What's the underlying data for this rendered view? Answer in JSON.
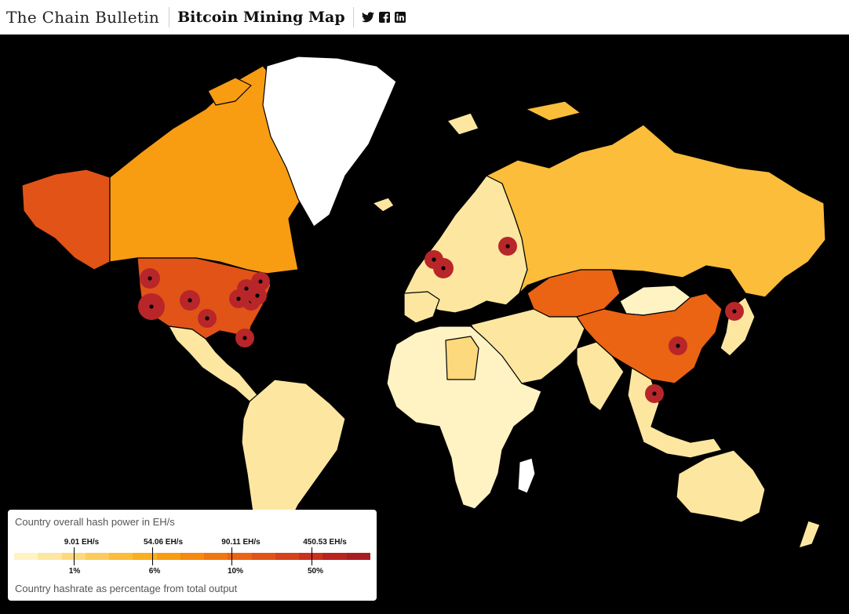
{
  "header": {
    "brand": "The Chain Bulletin",
    "title": "Bitcoin Mining Map",
    "social": [
      "twitter-icon",
      "facebook-icon",
      "linkedin-icon"
    ]
  },
  "legend": {
    "title": "Country overall hash power in EH/s",
    "footer": "Country hashrate as percentage from total output",
    "ehs_labels": [
      "9.01 EH/s",
      "54.06 EH/s",
      "90.11 EH/s",
      "450.53 EH/s"
    ],
    "pct_labels": [
      "1%",
      "6%",
      "10%",
      "50%"
    ],
    "scale_colors": [
      "#fff3c4",
      "#fde7a0",
      "#fcd97c",
      "#fccb5a",
      "#fbbd3a",
      "#fbae20",
      "#f89c12",
      "#f58a0d",
      "#f0770f",
      "#ea6414",
      "#e25318",
      "#d6421b",
      "#c8321e",
      "#b92421",
      "#ab1c22"
    ]
  },
  "colors": {
    "background": "#000000",
    "no_data": "#ffffff"
  },
  "map": {
    "countries": [
      {
        "name": "Canada",
        "color": "#f89c12"
      },
      {
        "name": "Alaska (USA)",
        "color": "#e25318"
      },
      {
        "name": "United States",
        "color": "#e25318"
      },
      {
        "name": "Greenland",
        "color": "#ffffff"
      },
      {
        "name": "Mexico",
        "color": "#fde7a0"
      },
      {
        "name": "South America",
        "color": "#fde7a0"
      },
      {
        "name": "Russia",
        "color": "#fbbd3a"
      },
      {
        "name": "China",
        "color": "#ea6414"
      },
      {
        "name": "Kazakhstan",
        "color": "#ea6414"
      },
      {
        "name": "Mongolia",
        "color": "#fff3c4"
      },
      {
        "name": "Europe",
        "color": "#fde7a0"
      },
      {
        "name": "Africa",
        "color": "#fff3c4"
      },
      {
        "name": "Libya",
        "color": "#fcd97c"
      },
      {
        "name": "Middle East",
        "color": "#fde7a0"
      },
      {
        "name": "India",
        "color": "#fde7a0"
      },
      {
        "name": "Southeast Asia",
        "color": "#fde7a0"
      },
      {
        "name": "Australia",
        "color": "#fde7a0"
      }
    ],
    "hotspots": [
      "Washington",
      "California",
      "Colorado",
      "Texas",
      "Georgia",
      "Kentucky",
      "Virginia",
      "Pennsylvania",
      "New York",
      "Florida",
      "Moscow",
      "Netherlands",
      "Germany",
      "Hong Kong",
      "Japan",
      "Singapore"
    ]
  }
}
